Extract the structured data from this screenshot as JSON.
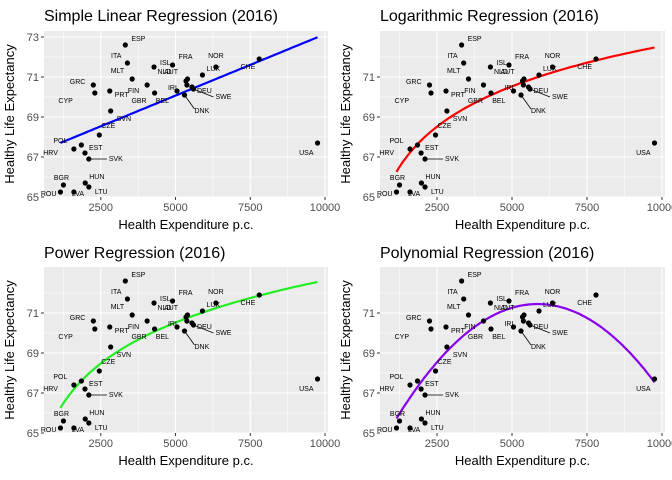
{
  "chart_data": [
    {
      "type": "scatter",
      "title": "Simple Linear Regression (2016)",
      "xlabel": "Health Expenditure p.c.",
      "ylabel": "Healthy Life Expectancy",
      "fit": "linear",
      "fit_color": "#0000ff"
    },
    {
      "type": "scatter",
      "title": "Logarithmic Regression (2016)",
      "xlabel": "Health Expenditure p.c.",
      "ylabel": "Healthy Life Expectancy",
      "fit": "logarithmic",
      "fit_color": "#ff0000"
    },
    {
      "type": "scatter",
      "title": "Power Regression (2016)",
      "xlabel": "Health Expenditure p.c.",
      "ylabel": "Healthy Life Expectancy",
      "fit": "power",
      "fit_color": "#22ee22"
    },
    {
      "type": "scatter",
      "title": "Polynomial Regression (2016)",
      "xlabel": "Health Expenditure p.c.",
      "ylabel": "Healthy Life Expectancy",
      "fit": "polynomial",
      "fit_color": "#8800ee"
    }
  ],
  "shared": {
    "xlim": [
      600,
      10100
    ],
    "ylim": [
      65.0,
      73.3
    ],
    "x_ticks": [
      2500,
      5000,
      7500,
      10000
    ],
    "x_tick_labels": [
      "2500",
      "5000",
      "7500",
      "10000"
    ],
    "y_ticks_first": [
      65,
      67,
      69,
      71,
      73
    ],
    "y_ticks_other": [
      65,
      67,
      69,
      71
    ],
    "points": [
      {
        "label": "ESP",
        "x": 3320,
        "y": 72.6
      },
      {
        "label": "ITA",
        "x": 3390,
        "y": 71.7
      },
      {
        "label": "ISL",
        "x": 4280,
        "y": 71.5
      },
      {
        "label": "FRA",
        "x": 4900,
        "y": 71.6
      },
      {
        "label": "NOR",
        "x": 6350,
        "y": 71.5
      },
      {
        "label": "CHE",
        "x": 7800,
        "y": 71.9
      },
      {
        "label": "MLT",
        "x": 3550,
        "y": 70.9
      },
      {
        "label": "GRC",
        "x": 2250,
        "y": 70.6
      },
      {
        "label": "AUT",
        "x": 5350,
        "y": 70.8
      },
      {
        "label": "LUX",
        "x": 5900,
        "y": 71.1
      },
      {
        "label": "NLD",
        "x": 5400,
        "y": 70.9
      },
      {
        "label": "SWE",
        "x": 5600,
        "y": 70.4
      },
      {
        "label": "FIN",
        "x": 4050,
        "y": 70.6
      },
      {
        "label": "IRL",
        "x": 5380,
        "y": 70.6
      },
      {
        "label": "CYP",
        "x": 2300,
        "y": 70.2
      },
      {
        "label": "PRT",
        "x": 2800,
        "y": 70.3
      },
      {
        "label": "GBR",
        "x": 4300,
        "y": 70.2
      },
      {
        "label": "BEL",
        "x": 5050,
        "y": 70.3
      },
      {
        "label": "DEU",
        "x": 5550,
        "y": 70.5
      },
      {
        "label": "DNK",
        "x": 5300,
        "y": 70.1
      },
      {
        "label": "SVN",
        "x": 2830,
        "y": 69.3
      },
      {
        "label": "CZE",
        "x": 2450,
        "y": 68.1
      },
      {
        "label": "POL",
        "x": 1850,
        "y": 67.6
      },
      {
        "label": "EST",
        "x": 1970,
        "y": 67.2
      },
      {
        "label": "HRV",
        "x": 1600,
        "y": 67.4
      },
      {
        "label": "SVK",
        "x": 2100,
        "y": 66.9
      },
      {
        "label": "USA",
        "x": 9750,
        "y": 67.7
      },
      {
        "label": "HUN",
        "x": 1980,
        "y": 65.7
      },
      {
        "label": "BGR",
        "x": 1250,
        "y": 65.6
      },
      {
        "label": "LTU",
        "x": 2100,
        "y": 65.5
      },
      {
        "label": "ROU",
        "x": 1150,
        "y": 65.25
      },
      {
        "label": "LVA",
        "x": 1600,
        "y": 65.25
      }
    ]
  }
}
